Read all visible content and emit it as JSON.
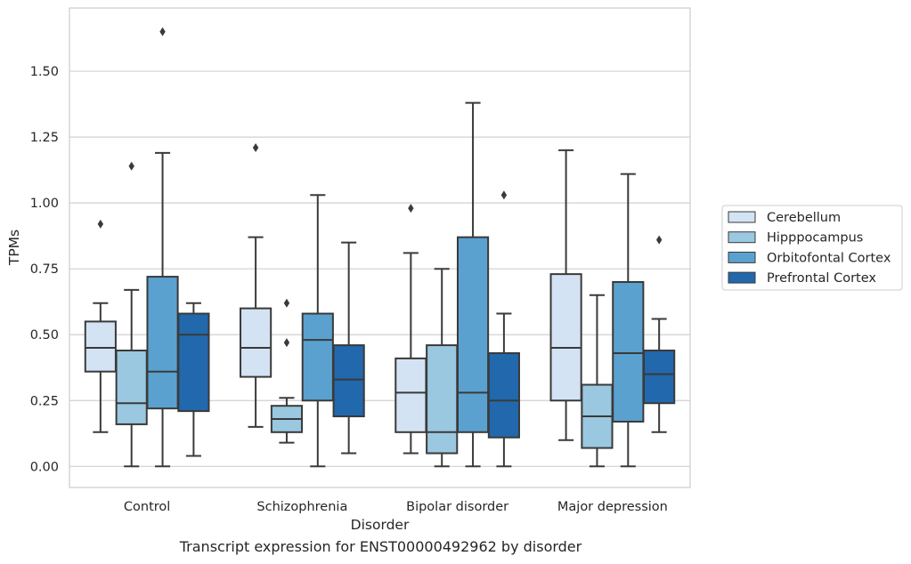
{
  "caption": "Transcript expression for ENST00000492962 by disorder",
  "chart_data": {
    "type": "box",
    "title": "",
    "xlabel": "Disorder",
    "ylabel": "TPMs",
    "ylim": [
      -0.08,
      1.74
    ],
    "yticks": [
      0.0,
      0.25,
      0.5,
      0.75,
      1.0,
      1.25,
      1.5
    ],
    "ytick_labels": [
      "0.00",
      "0.25",
      "0.50",
      "0.75",
      "1.00",
      "1.25",
      "1.50"
    ],
    "grid": "horizontal",
    "legend_position": "right",
    "categories": [
      "Control",
      "Schizophrenia",
      "Bipolar disorder",
      "Major depression"
    ],
    "series": [
      {
        "name": "Cerebellum",
        "color": "#d3e3f3",
        "boxes": [
          {
            "whisker_low": 0.13,
            "q1": 0.36,
            "median": 0.45,
            "q3": 0.55,
            "whisker_high": 0.62,
            "outliers": [
              0.92
            ]
          },
          {
            "whisker_low": 0.15,
            "q1": 0.34,
            "median": 0.45,
            "q3": 0.6,
            "whisker_high": 0.87,
            "outliers": [
              1.21
            ]
          },
          {
            "whisker_low": 0.05,
            "q1": 0.13,
            "median": 0.28,
            "q3": 0.41,
            "whisker_high": 0.81,
            "outliers": [
              0.98
            ]
          },
          {
            "whisker_low": 0.1,
            "q1": 0.25,
            "median": 0.45,
            "q3": 0.73,
            "whisker_high": 1.2,
            "outliers": []
          }
        ]
      },
      {
        "name": "Hipppocampus",
        "color": "#9ac8e0",
        "boxes": [
          {
            "whisker_low": 0.0,
            "q1": 0.16,
            "median": 0.24,
            "q3": 0.44,
            "whisker_high": 0.67,
            "outliers": [
              1.14
            ]
          },
          {
            "whisker_low": 0.09,
            "q1": 0.13,
            "median": 0.18,
            "q3": 0.23,
            "whisker_high": 0.26,
            "outliers": [
              0.47,
              0.62
            ]
          },
          {
            "whisker_low": 0.0,
            "q1": 0.05,
            "median": 0.13,
            "q3": 0.46,
            "whisker_high": 0.75,
            "outliers": []
          },
          {
            "whisker_low": 0.0,
            "q1": 0.07,
            "median": 0.19,
            "q3": 0.31,
            "whisker_high": 0.65,
            "outliers": []
          }
        ]
      },
      {
        "name": "Orbitofontal Cortex",
        "color": "#5aa1cf",
        "boxes": [
          {
            "whisker_low": 0.0,
            "q1": 0.22,
            "median": 0.36,
            "q3": 0.72,
            "whisker_high": 1.19,
            "outliers": [
              1.65
            ]
          },
          {
            "whisker_low": 0.0,
            "q1": 0.25,
            "median": 0.48,
            "q3": 0.58,
            "whisker_high": 1.03,
            "outliers": []
          },
          {
            "whisker_low": 0.0,
            "q1": 0.13,
            "median": 0.28,
            "q3": 0.87,
            "whisker_high": 1.38,
            "outliers": []
          },
          {
            "whisker_low": 0.0,
            "q1": 0.17,
            "median": 0.43,
            "q3": 0.7,
            "whisker_high": 1.11,
            "outliers": []
          }
        ]
      },
      {
        "name": "Prefrontal Cortex",
        "color": "#2268ad",
        "boxes": [
          {
            "whisker_low": 0.04,
            "q1": 0.21,
            "median": 0.5,
            "q3": 0.58,
            "whisker_high": 0.62,
            "outliers": []
          },
          {
            "whisker_low": 0.05,
            "q1": 0.19,
            "median": 0.33,
            "q3": 0.46,
            "whisker_high": 0.85,
            "outliers": []
          },
          {
            "whisker_low": 0.0,
            "q1": 0.11,
            "median": 0.25,
            "q3": 0.43,
            "whisker_high": 0.58,
            "outliers": [
              1.03
            ]
          },
          {
            "whisker_low": 0.13,
            "q1": 0.24,
            "median": 0.35,
            "q3": 0.44,
            "whisker_high": 0.56,
            "outliers": [
              0.86
            ]
          }
        ]
      }
    ]
  }
}
